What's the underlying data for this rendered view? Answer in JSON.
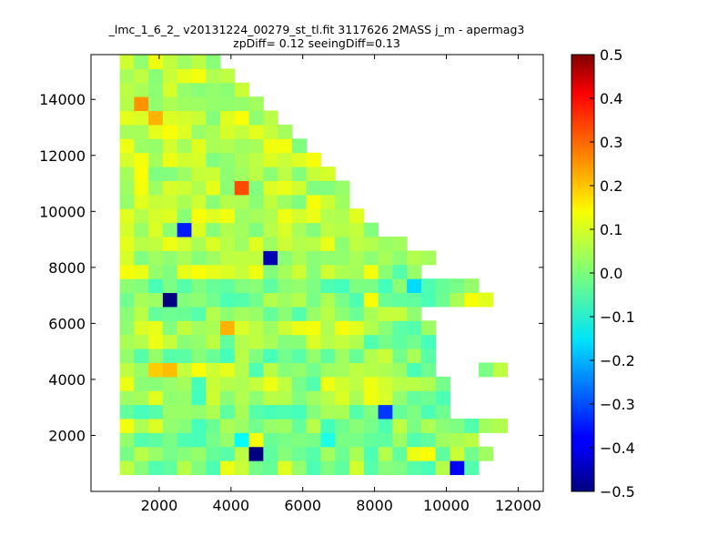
{
  "chart_data": {
    "type": "heatmap",
    "title_line1": "_lmc_1_6_2_ v20131224_00279_st_tl.fit 3117626 2MASS j_m - apermag3",
    "title_line2": "zpDiff= 0.12 seeingDiff=0.13",
    "xlabel": "",
    "ylabel": "",
    "xlim": [
      100,
      12700
    ],
    "ylim": [
      0,
      15600
    ],
    "xticks": [
      2000,
      4000,
      6000,
      8000,
      10000,
      12000
    ],
    "yticks": [
      2000,
      4000,
      6000,
      8000,
      10000,
      12000,
      14000
    ],
    "grid": false,
    "colormap": "jet",
    "colorbar": {
      "vmin": -0.5,
      "vmax": 0.5,
      "ticks": [
        "0.5",
        "0.4",
        "0.3",
        "0.2",
        "0.1",
        "0.0",
        "−0.1",
        "−0.2",
        "−0.3",
        "−0.4",
        "−0.5"
      ],
      "tick_values": [
        0.5,
        0.4,
        0.3,
        0.2,
        0.1,
        0.0,
        -0.1,
        -0.2,
        -0.3,
        -0.4,
        -0.5
      ]
    },
    "cell_size": [
      400,
      500
    ],
    "grid_origin": [
      100,
      100
    ],
    "rows": [
      "NNNNNNNNNNNNNNNNNNNNNNNNNNNNNNNN",
      "NN1000100110010000100000010NNNNN",
      "NN00100000000000001000100100NNNN",
      "NN00000000X10000X0000000000NNNNN",
      "NN101000011000000000000000000NNN",
      "NN00000000000000000000000NNNNNNN",
      "NN11111011111110111110000NNNNNNN",
      "NN11111011111100111111000NNNNNNN",
      "NN1044111110000000110000NNN00NNN",
      "NN0000000000000000001000NNNNNNNN",
      "NN1111111011111111000000NNNNNNNN",
      "NN1111111011111111111000NNNNNNNN",
      "NN000000000000000001111NNNNNNNNN",
      "NN00000000000000000000000111NNNN",
      "NN0000000000000000000000000NNNNN",
      "NN111111111111111111000NNNNNNNNN",
      "NN1111111111111111111111NNNNNNNN",
      "NN11111111111111111110NNNNNNNNNN",
      "NN111111111111111111NNNNNNNNNNNN",
      "NN11111111111111111NNNNNNNNNNNNN",
      "NN1111111111111111NNNNNNNNNNNNNN",
      "NN1111111111111111NNNNNNNNNNNNNN",
      "NN111111111111111NNNNNNNNNNNNNNN",
      "NN11111111111111NNNNNNNNNNNNNNNN",
      "NN1111111111111NNNNNNNNNNNNNNNNN",
      "NN111111111111NNNNNNNNNNNNNNNNNN",
      "NN11111111111NNNNNNNNNNNNNNNNNNN",
      "NN1111111111NNNNNNNNNNNNNNNNNNNN",
      "NN111111111NNNNNNNNNNNNNNNNNNNNN",
      "NN11111111NNNNNNNNNNNNNNNNNNNNNN",
      "NN1111111NNNNNNNNNNNNNNNNNNNNNNN"
    ]
  }
}
